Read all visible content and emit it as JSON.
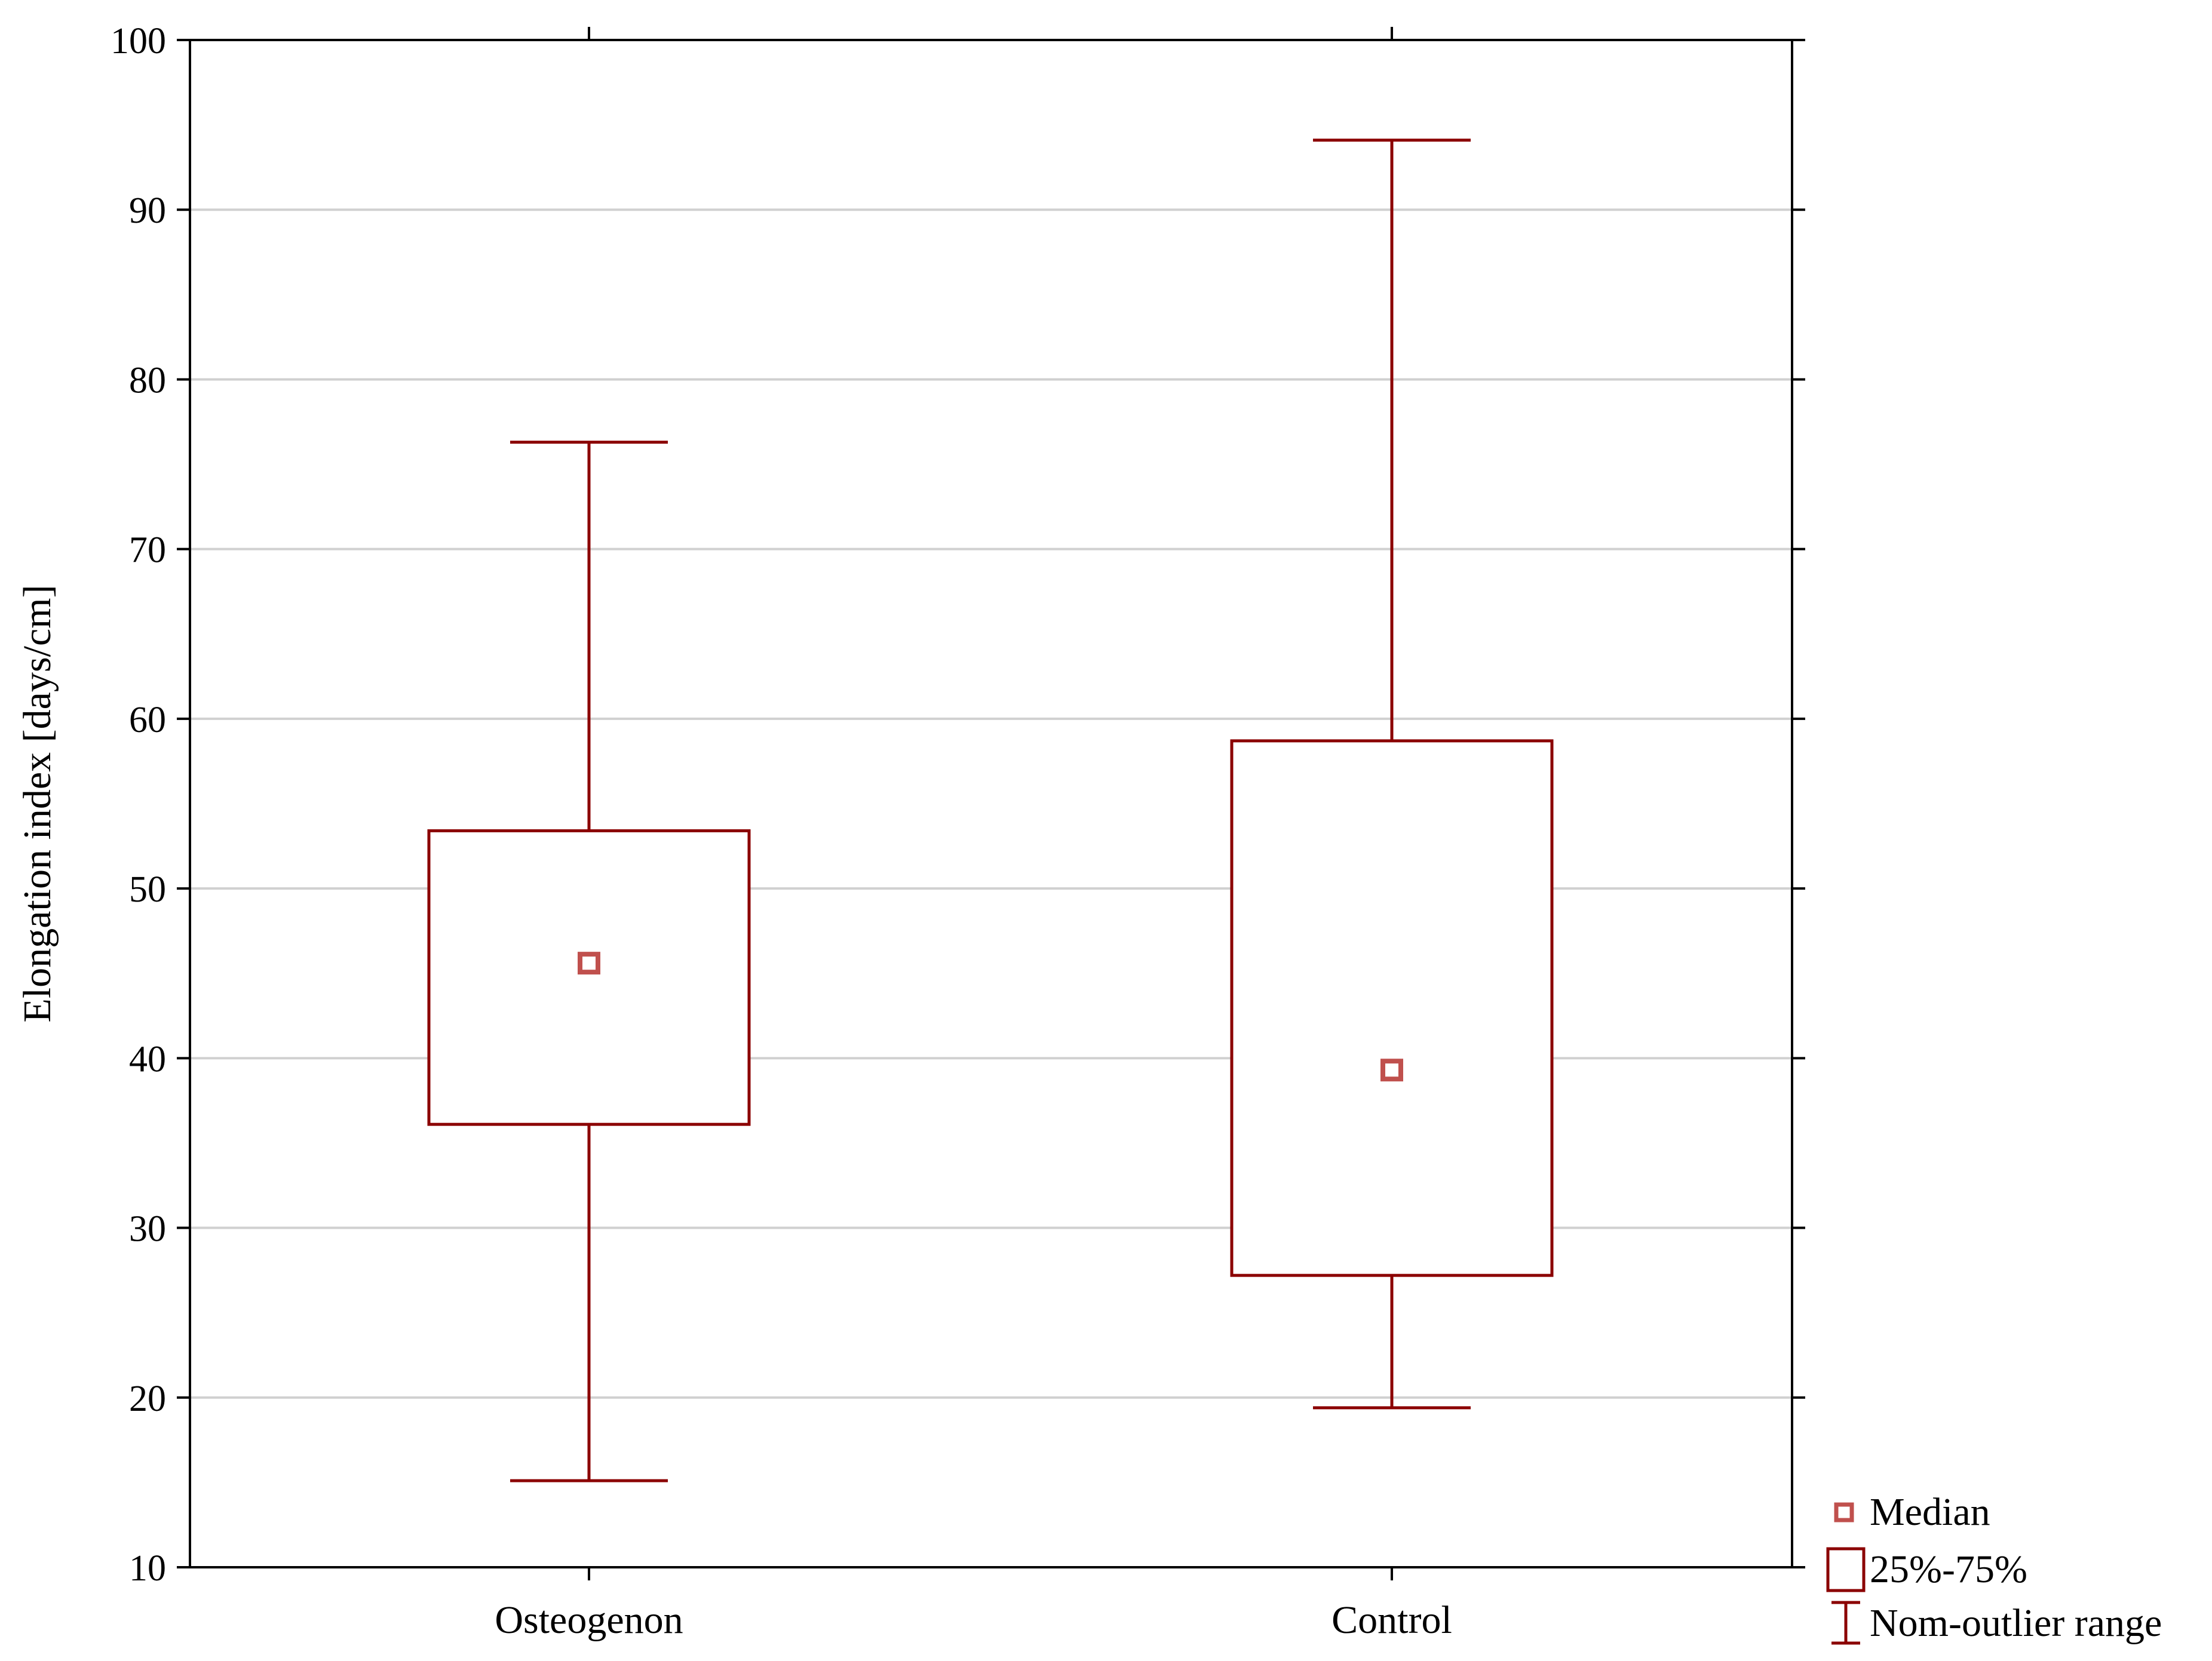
{
  "chart_data": {
    "type": "boxplot",
    "title": "",
    "xlabel": "",
    "ylabel": "Elongation index [days/cm]",
    "ylim": [
      10,
      100
    ],
    "yticks": [
      10,
      20,
      30,
      40,
      50,
      60,
      70,
      80,
      90,
      100
    ],
    "grid": true,
    "categories": [
      "Osteogenon",
      "Control"
    ],
    "boxes": [
      {
        "category": "Osteogenon",
        "median": 45.6,
        "q1": 36.1,
        "q3": 53.4,
        "whisker_low": 15.1,
        "whisker_high": 76.3
      },
      {
        "category": "Control",
        "median": 39.3,
        "q1": 27.2,
        "q3": 58.7,
        "whisker_low": 19.4,
        "whisker_high": 94.1
      }
    ],
    "legend": {
      "placement": "bottom-right-outside",
      "items": [
        {
          "symbol": "median-marker",
          "label": "Median"
        },
        {
          "symbol": "box",
          "label": "25%-75%"
        },
        {
          "symbol": "whisker",
          "label": "Nom-outlier range"
        }
      ]
    },
    "colors": {
      "box_stroke": "#8b0000",
      "median_marker": "#c0504d",
      "grid": "#d0d0d0",
      "axis": "#000000"
    }
  }
}
